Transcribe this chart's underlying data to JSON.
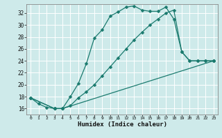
{
  "xlabel": "Humidex (Indice chaleur)",
  "bg_color": "#ceeaea",
  "grid_color": "#ffffff",
  "line_color": "#1a7a6e",
  "xlim": [
    -0.5,
    23.5
  ],
  "ylim": [
    15.0,
    33.5
  ],
  "yticks": [
    16,
    18,
    20,
    22,
    24,
    26,
    28,
    30,
    32
  ],
  "xticks": [
    0,
    1,
    2,
    3,
    4,
    5,
    6,
    7,
    8,
    9,
    10,
    11,
    12,
    13,
    14,
    15,
    16,
    17,
    18,
    19,
    20,
    21,
    22,
    23
  ],
  "line1_x": [
    0,
    1,
    2,
    3,
    4,
    5,
    6,
    7,
    8,
    9,
    10,
    11,
    12,
    13,
    14,
    15,
    16,
    17,
    18,
    19,
    20,
    21,
    22,
    23
  ],
  "line1_y": [
    17.8,
    16.8,
    16.2,
    16.0,
    16.0,
    18.0,
    20.2,
    23.5,
    27.8,
    29.2,
    31.5,
    32.2,
    33.0,
    33.2,
    32.5,
    32.3,
    32.3,
    33.0,
    31.0,
    25.5,
    24.0,
    24.0,
    24.0,
    24.0
  ],
  "line2_x": [
    0,
    3,
    4,
    5,
    6,
    7,
    8,
    9,
    10,
    11,
    12,
    13,
    14,
    15,
    16,
    17,
    18,
    19,
    20,
    21,
    22,
    23
  ],
  "line2_y": [
    17.8,
    16.0,
    16.0,
    16.5,
    17.8,
    18.8,
    20.0,
    21.5,
    23.0,
    24.5,
    26.0,
    27.5,
    28.8,
    30.0,
    31.0,
    32.0,
    32.5,
    25.5,
    24.0,
    24.0,
    24.0,
    24.0
  ],
  "line3_x": [
    0,
    3,
    4,
    23
  ],
  "line3_y": [
    17.8,
    16.0,
    16.0,
    24.0
  ],
  "markersize": 2.5,
  "linewidth": 0.9
}
